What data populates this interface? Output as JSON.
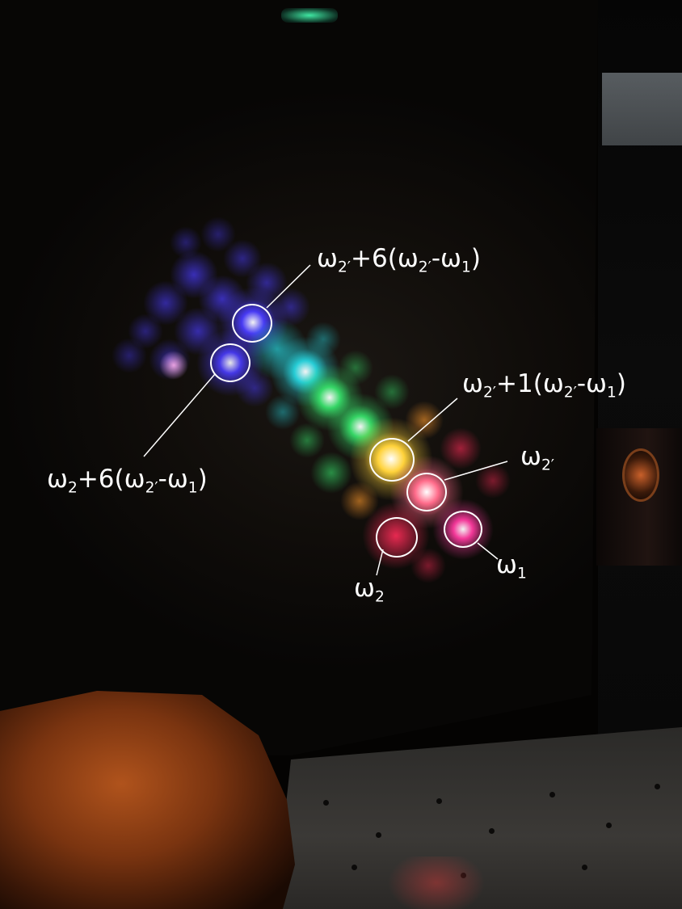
{
  "photo": {
    "subject": "multi-color laser sideband spots on a screen",
    "colors": {
      "ink": "#ffffff",
      "blue": "#4a3cff",
      "cyan": "#27d6e0",
      "green": "#37e06a",
      "yellow": "#ffd23a",
      "orange": "#ff9a2c",
      "red": "#ff2c58",
      "magenta": "#ff3aa0"
    }
  },
  "annotations": {
    "top_blue": {
      "omega": "ω",
      "sub_a": "2′",
      "mid": "+6(ω",
      "sub_b": "2′",
      "tail": "-ω",
      "sub_c": "1",
      "close": ")"
    },
    "left_blue": {
      "omega": "ω",
      "sub_a": "2",
      "mid": "+6(ω",
      "sub_b": "2′",
      "tail": "-ω",
      "sub_c": "1",
      "close": ")"
    },
    "yellow": {
      "omega": "ω",
      "sub_a": "2′",
      "mid": "+1(ω",
      "sub_b": "2′",
      "tail": "-ω",
      "sub_c": "1",
      "close": ")"
    },
    "omega2prime": {
      "omega": "ω",
      "sub": "2′"
    },
    "omega1": {
      "omega": "ω",
      "sub": "1"
    },
    "omega2": {
      "omega": "ω",
      "sub": "2"
    }
  }
}
